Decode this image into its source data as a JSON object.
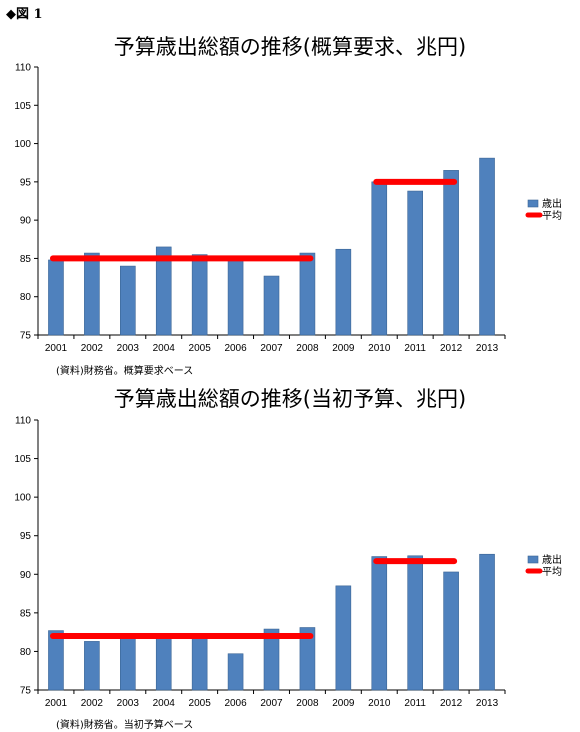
{
  "figure_label": "◆図 1",
  "chart_data": [
    {
      "type": "bar",
      "title": "予算歳出総額の推移(概算要求、兆円)",
      "categories": [
        "2001",
        "2002",
        "2003",
        "2004",
        "2005",
        "2006",
        "2007",
        "2008",
        "2009",
        "2010",
        "2011",
        "2012",
        "2013"
      ],
      "series": [
        {
          "name": "歳出",
          "values": [
            84.8,
            85.7,
            84.0,
            86.5,
            85.5,
            85.0,
            82.7,
            85.7,
            86.2,
            95.0,
            93.8,
            96.5,
            98.1
          ],
          "color": "#4f81bd"
        }
      ],
      "averages": [
        {
          "name": "平均",
          "value": 85.0,
          "from": "2001",
          "to": "2008",
          "color": "#ff0000"
        },
        {
          "name": "平均",
          "value": 95.0,
          "from": "2010",
          "to": "2012",
          "color": "#ff0000"
        }
      ],
      "ylim": [
        75,
        110
      ],
      "yticks": [
        75,
        80,
        85,
        90,
        95,
        100,
        105,
        110
      ],
      "legend": [
        "歳出",
        "平均"
      ],
      "legend_position": "right",
      "grid": false,
      "source": "(資料)財務省。概算要求ベース"
    },
    {
      "type": "bar",
      "title": "予算歳出総額の推移(当初予算、兆円)",
      "categories": [
        "2001",
        "2002",
        "2003",
        "2004",
        "2005",
        "2006",
        "2007",
        "2008",
        "2009",
        "2010",
        "2011",
        "2012",
        "2013"
      ],
      "series": [
        {
          "name": "歳出",
          "values": [
            82.7,
            81.3,
            82.0,
            82.0,
            82.0,
            79.7,
            82.9,
            83.1,
            88.5,
            92.3,
            92.4,
            90.3,
            92.6
          ],
          "color": "#4f81bd"
        }
      ],
      "averages": [
        {
          "name": "平均",
          "value": 82.0,
          "from": "2001",
          "to": "2008",
          "color": "#ff0000"
        },
        {
          "name": "平均",
          "value": 91.7,
          "from": "2010",
          "to": "2012",
          "color": "#ff0000"
        }
      ],
      "ylim": [
        75,
        110
      ],
      "yticks": [
        75,
        80,
        85,
        90,
        95,
        100,
        105,
        110
      ],
      "legend": [
        "歳出",
        "平均"
      ],
      "legend_position": "right",
      "grid": false,
      "source": "(資料)財務省。当初予算ベース"
    }
  ]
}
